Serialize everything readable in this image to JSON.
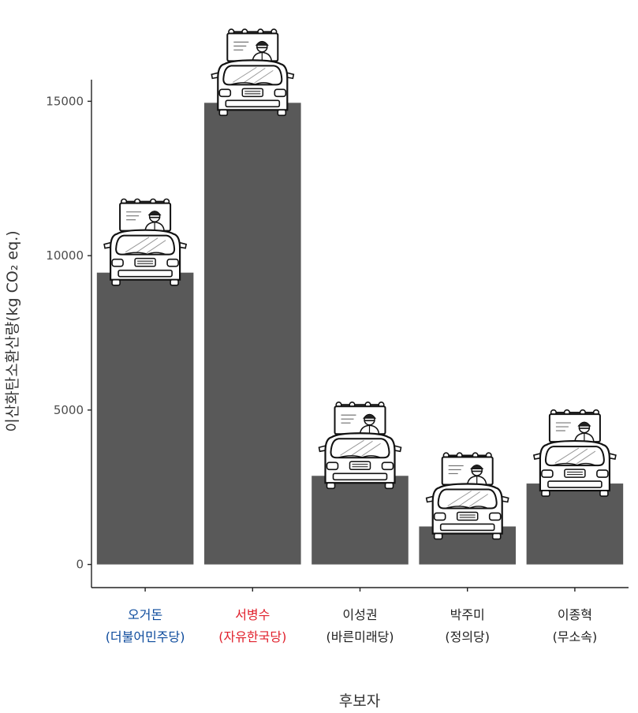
{
  "chart_data": {
    "type": "bar",
    "categories": [
      {
        "name": "오거돈",
        "party": "(더불어민주당)",
        "color": "#0c4a9c"
      },
      {
        "name": "서병수",
        "party": "(자유한국당)",
        "color": "#e0202c"
      },
      {
        "name": "이성권",
        "party": "(바른미래당)",
        "color": "#222222"
      },
      {
        "name": "박주미",
        "party": "(정의당)",
        "color": "#222222"
      },
      {
        "name": "이종혁",
        "party": "(무소속)",
        "color": "#222222"
      }
    ],
    "values": [
      9450,
      14950,
      2870,
      1230,
      2620
    ],
    "xlabel": "후보자",
    "ylabel": "이산화탄소환산량(kg CO₂ eq.)",
    "yticks": [
      0,
      5000,
      10000,
      15000
    ],
    "ylim": [
      -750,
      15700
    ],
    "bar_color": "#595959",
    "grid": false,
    "legend": "none",
    "bar_icon": "campaign-truck-icon"
  }
}
